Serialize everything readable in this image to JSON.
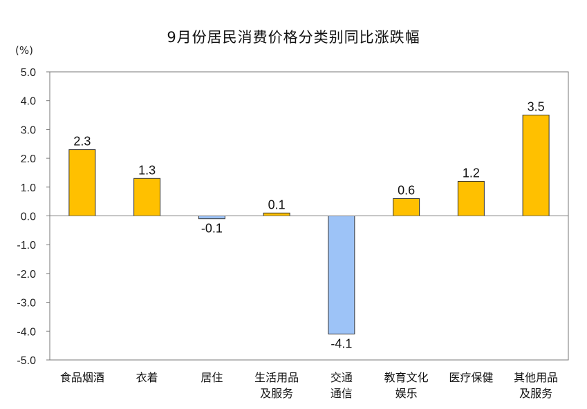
{
  "chart_data": {
    "type": "bar",
    "title": "9月份居民消费价格分类别同比涨跌幅",
    "unit": "(%)",
    "ylim": [
      -5.0,
      5.0
    ],
    "yticks": [
      "5.0",
      "4.0",
      "3.0",
      "2.0",
      "1.0",
      "0.0",
      "-1.0",
      "-2.0",
      "-3.0",
      "-4.0",
      "-5.0"
    ],
    "categories": [
      [
        "食品烟酒"
      ],
      [
        "衣着"
      ],
      [
        "居住"
      ],
      [
        "生活用品",
        "及服务"
      ],
      [
        "交通",
        "通信"
      ],
      [
        "教育文化",
        "娱乐"
      ],
      [
        "医疗保健"
      ],
      [
        "其他用品",
        "及服务"
      ]
    ],
    "values": [
      2.3,
      1.3,
      -0.1,
      0.1,
      -4.1,
      0.6,
      1.2,
      3.5
    ],
    "value_labels": [
      "2.3",
      "1.3",
      "-0.1",
      "0.1",
      "-4.1",
      "0.6",
      "1.2",
      "3.5"
    ],
    "colors": {
      "positive": "#FFC000",
      "negative": "#9DC3F7",
      "edge": "#333333",
      "axis": "#777777"
    },
    "grid": false,
    "legend": "none"
  }
}
